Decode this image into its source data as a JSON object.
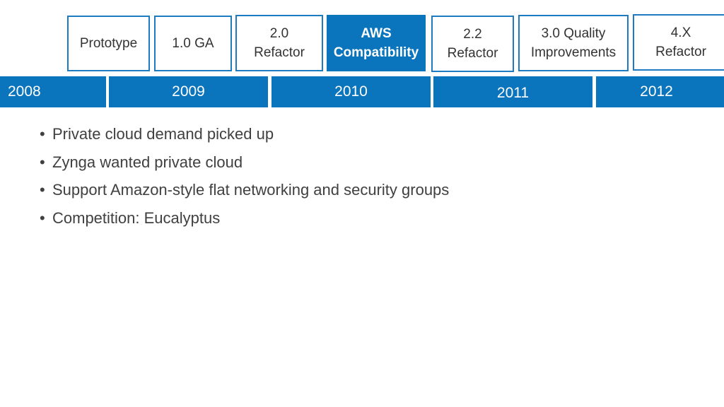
{
  "milestones": [
    {
      "lines": [
        "Prototype"
      ],
      "active": false
    },
    {
      "lines": [
        "1.0 GA"
      ],
      "active": false
    },
    {
      "lines": [
        "2.0",
        "Refactor"
      ],
      "active": false
    },
    {
      "lines": [
        "AWS",
        "Compatibility"
      ],
      "active": true
    },
    {
      "lines": [
        "2.2",
        "Refactor"
      ],
      "active": false
    },
    {
      "lines": [
        "3.0 Quality",
        "Improvements"
      ],
      "active": false
    },
    {
      "lines": [
        "4.X",
        "Refactor"
      ],
      "active": false
    }
  ],
  "years": [
    "2008",
    "2009",
    "2010",
    "2011",
    "2012"
  ],
  "bullets": [
    "Private cloud demand picked up",
    "Zynga wanted private cloud",
    "Support Amazon-style flat networking and security groups",
    "Competition: Eucalyptus"
  ],
  "bullet_glyph": "•",
  "colors": {
    "accent": "#0a74bd",
    "box_border": "#1f7bbf",
    "text": "#404040"
  }
}
